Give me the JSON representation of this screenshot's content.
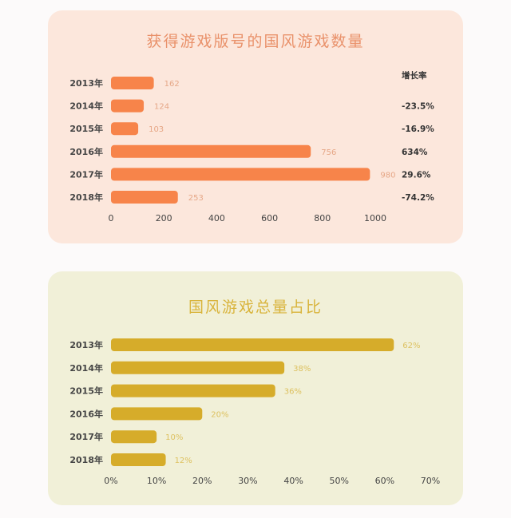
{
  "chart_data": [
    {
      "type": "bar",
      "orientation": "horizontal",
      "title": "获得游戏版号的国风游戏数量",
      "categories": [
        "2013年",
        "2014年",
        "2015年",
        "2016年",
        "2017年",
        "2018年"
      ],
      "values": [
        162,
        124,
        103,
        756,
        980,
        253
      ],
      "value_labels": [
        "162",
        "124",
        "103",
        "756",
        "980",
        "253"
      ],
      "xlim": [
        0,
        1000
      ],
      "xticks": [
        "0",
        "200",
        "400",
        "600",
        "800",
        "1000"
      ],
      "grid": false,
      "extra_column": {
        "header": "增长率",
        "values": [
          "",
          "-23.5%",
          "-16.9%",
          "634%",
          "29.6%",
          "-74.2%"
        ]
      },
      "bar_color": "#f7844a",
      "background": "#fce7dc"
    },
    {
      "type": "bar",
      "orientation": "horizontal",
      "title": "国风游戏总量占比",
      "categories": [
        "2013年",
        "2014年",
        "2015年",
        "2016年",
        "2017年",
        "2018年"
      ],
      "values": [
        62,
        38,
        36,
        20,
        10,
        12
      ],
      "value_labels": [
        "62%",
        "38%",
        "36%",
        "20%",
        "10%",
        "12%"
      ],
      "xlim": [
        0,
        70
      ],
      "xticks": [
        "0%",
        "10%",
        "20%",
        "30%",
        "40%",
        "50%",
        "60%",
        "70%"
      ],
      "grid": false,
      "bar_color": "#d6ac2a",
      "background": "#f1f0d8"
    }
  ]
}
